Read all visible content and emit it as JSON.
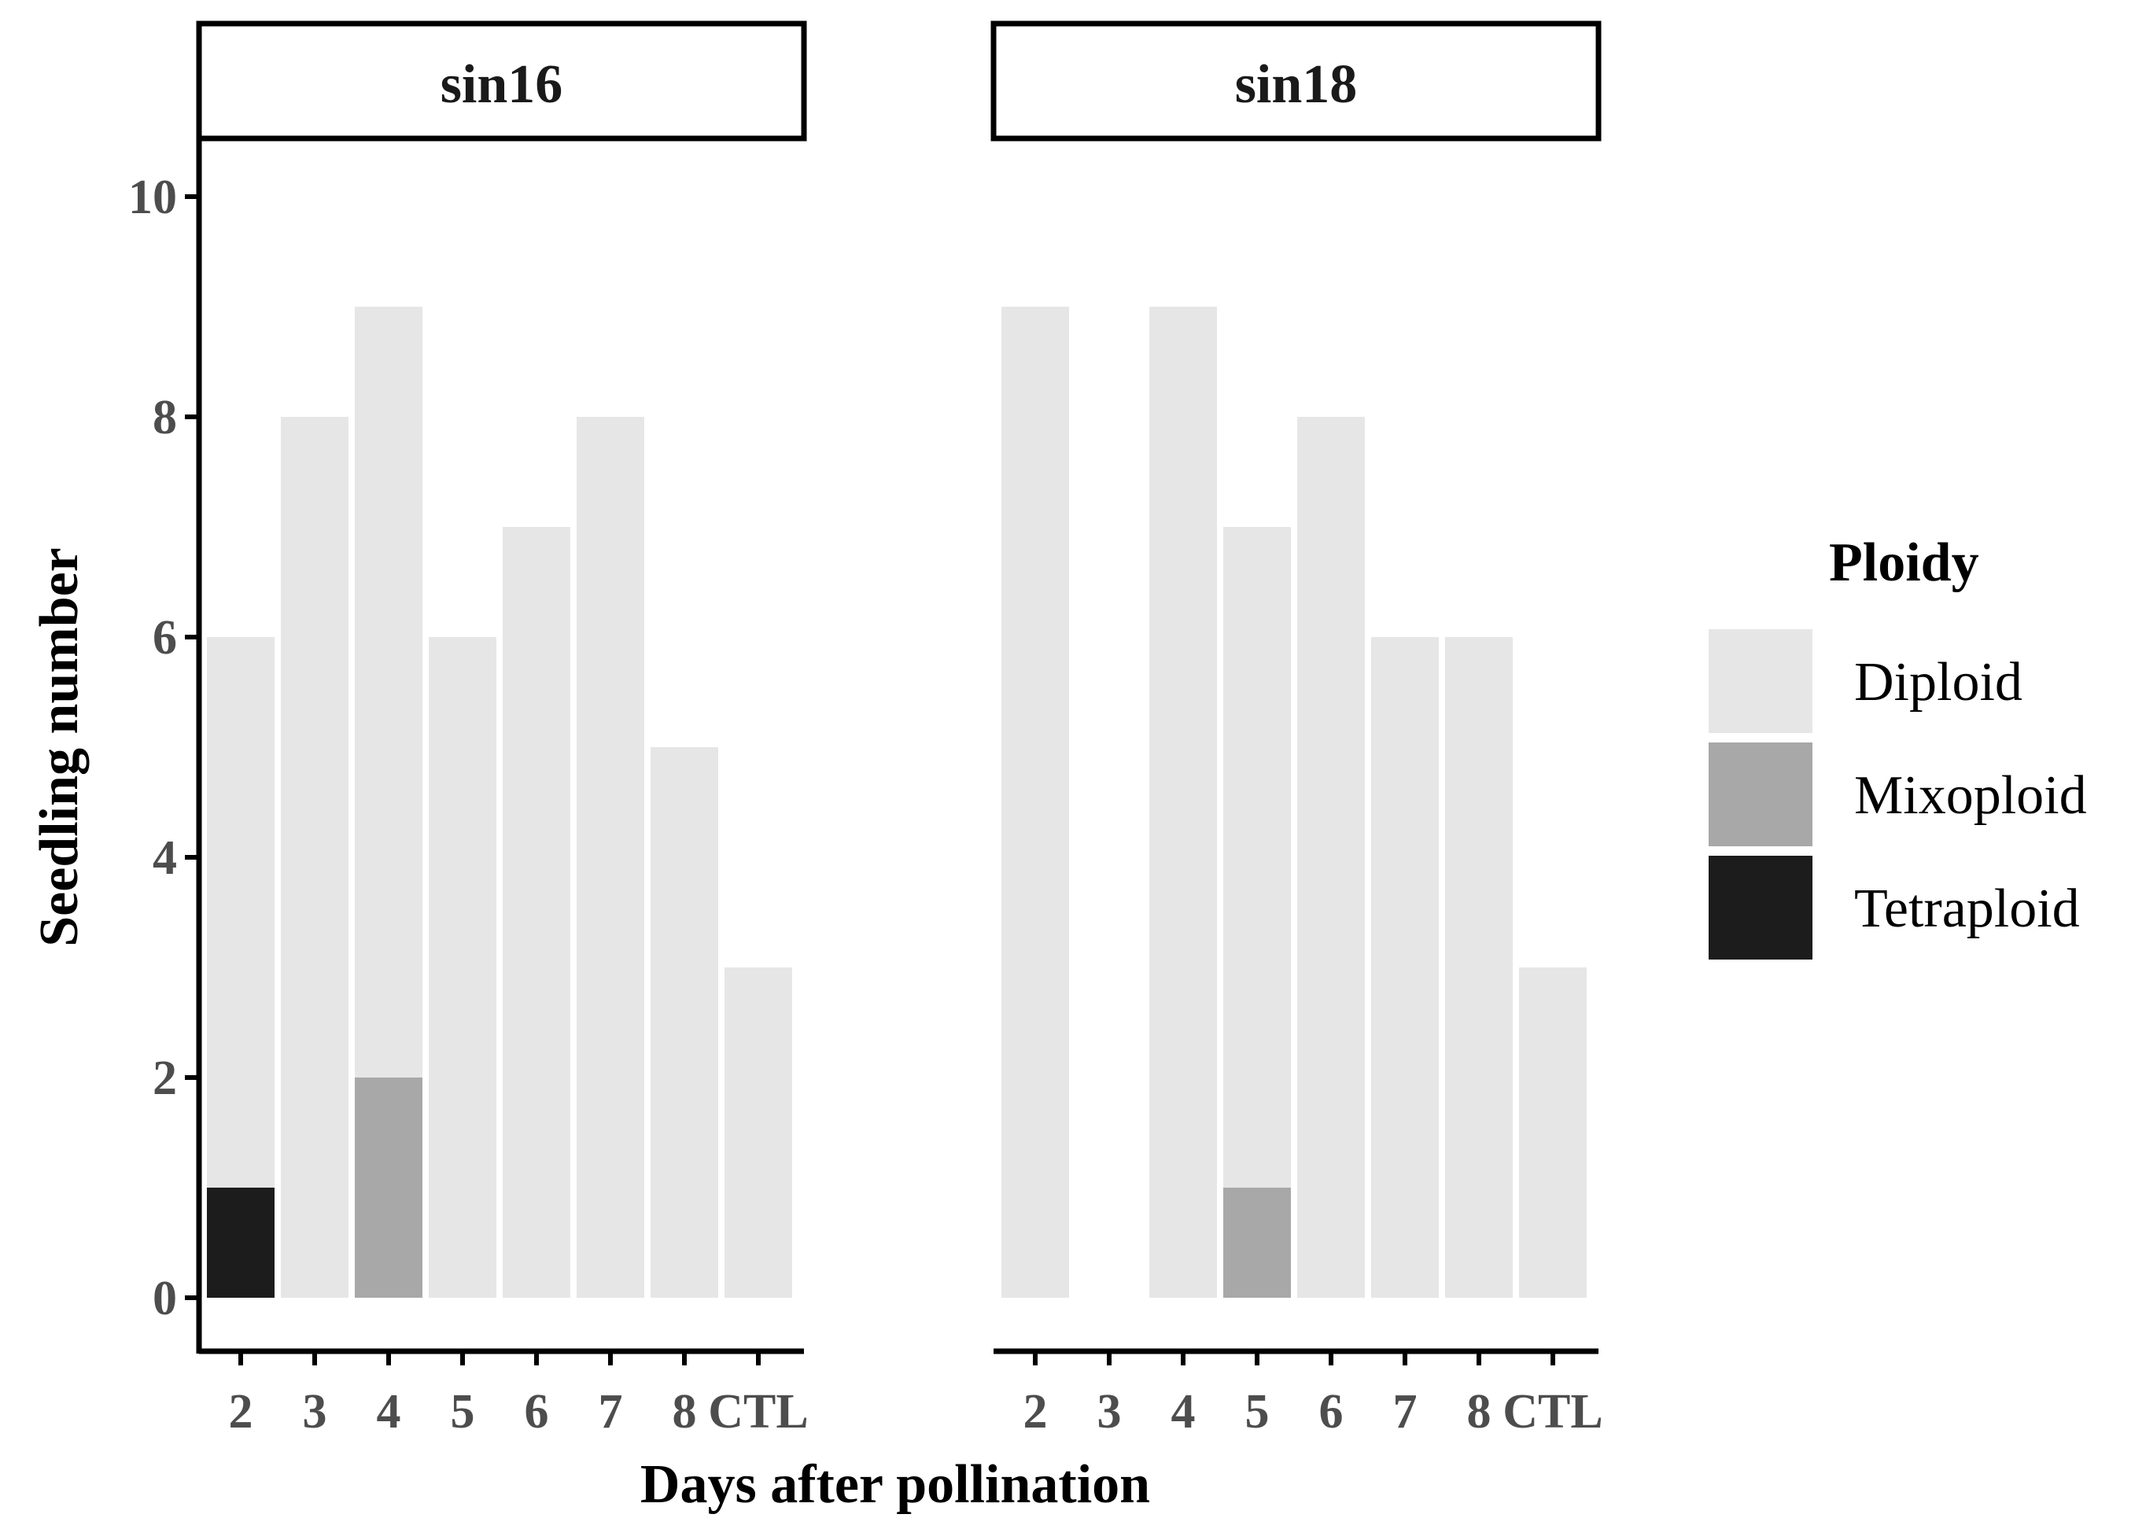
{
  "chart_data": {
    "type": "bar",
    "stacked": true,
    "xlabel": "Days after pollination",
    "ylabel": "Seedling number",
    "ylim": [
      0,
      10
    ],
    "yticks": [
      0,
      2,
      4,
      6,
      8,
      10
    ],
    "grid": false,
    "legend": {
      "title": "Ploidy",
      "placement": "right",
      "entries": [
        "Diploid",
        "Mixoploid",
        "Tetraploid"
      ]
    },
    "colors": {
      "Diploid": "#e6e6e6",
      "Mixoploid": "#a8a8a8",
      "Tetraploid": "#1c1c1c"
    },
    "categories": [
      "2",
      "3",
      "4",
      "5",
      "6",
      "7",
      "8",
      "CTL"
    ],
    "panels": [
      {
        "name": "sin16",
        "series": [
          {
            "name": "Tetraploid",
            "values": [
              1,
              0,
              0,
              0,
              0,
              0,
              0,
              0
            ]
          },
          {
            "name": "Mixoploid",
            "values": [
              0,
              0,
              2,
              0,
              0,
              0,
              0,
              0
            ]
          },
          {
            "name": "Diploid",
            "values": [
              5,
              8,
              7,
              6,
              7,
              8,
              5,
              3
            ]
          }
        ]
      },
      {
        "name": "sin18",
        "series": [
          {
            "name": "Tetraploid",
            "values": [
              0,
              0,
              0,
              0,
              0,
              0,
              0,
              0
            ]
          },
          {
            "name": "Mixoploid",
            "values": [
              0,
              0,
              0,
              1,
              0,
              0,
              0,
              0
            ]
          },
          {
            "name": "Diploid",
            "values": [
              9,
              0,
              9,
              6,
              8,
              6,
              6,
              3
            ]
          }
        ]
      }
    ]
  }
}
